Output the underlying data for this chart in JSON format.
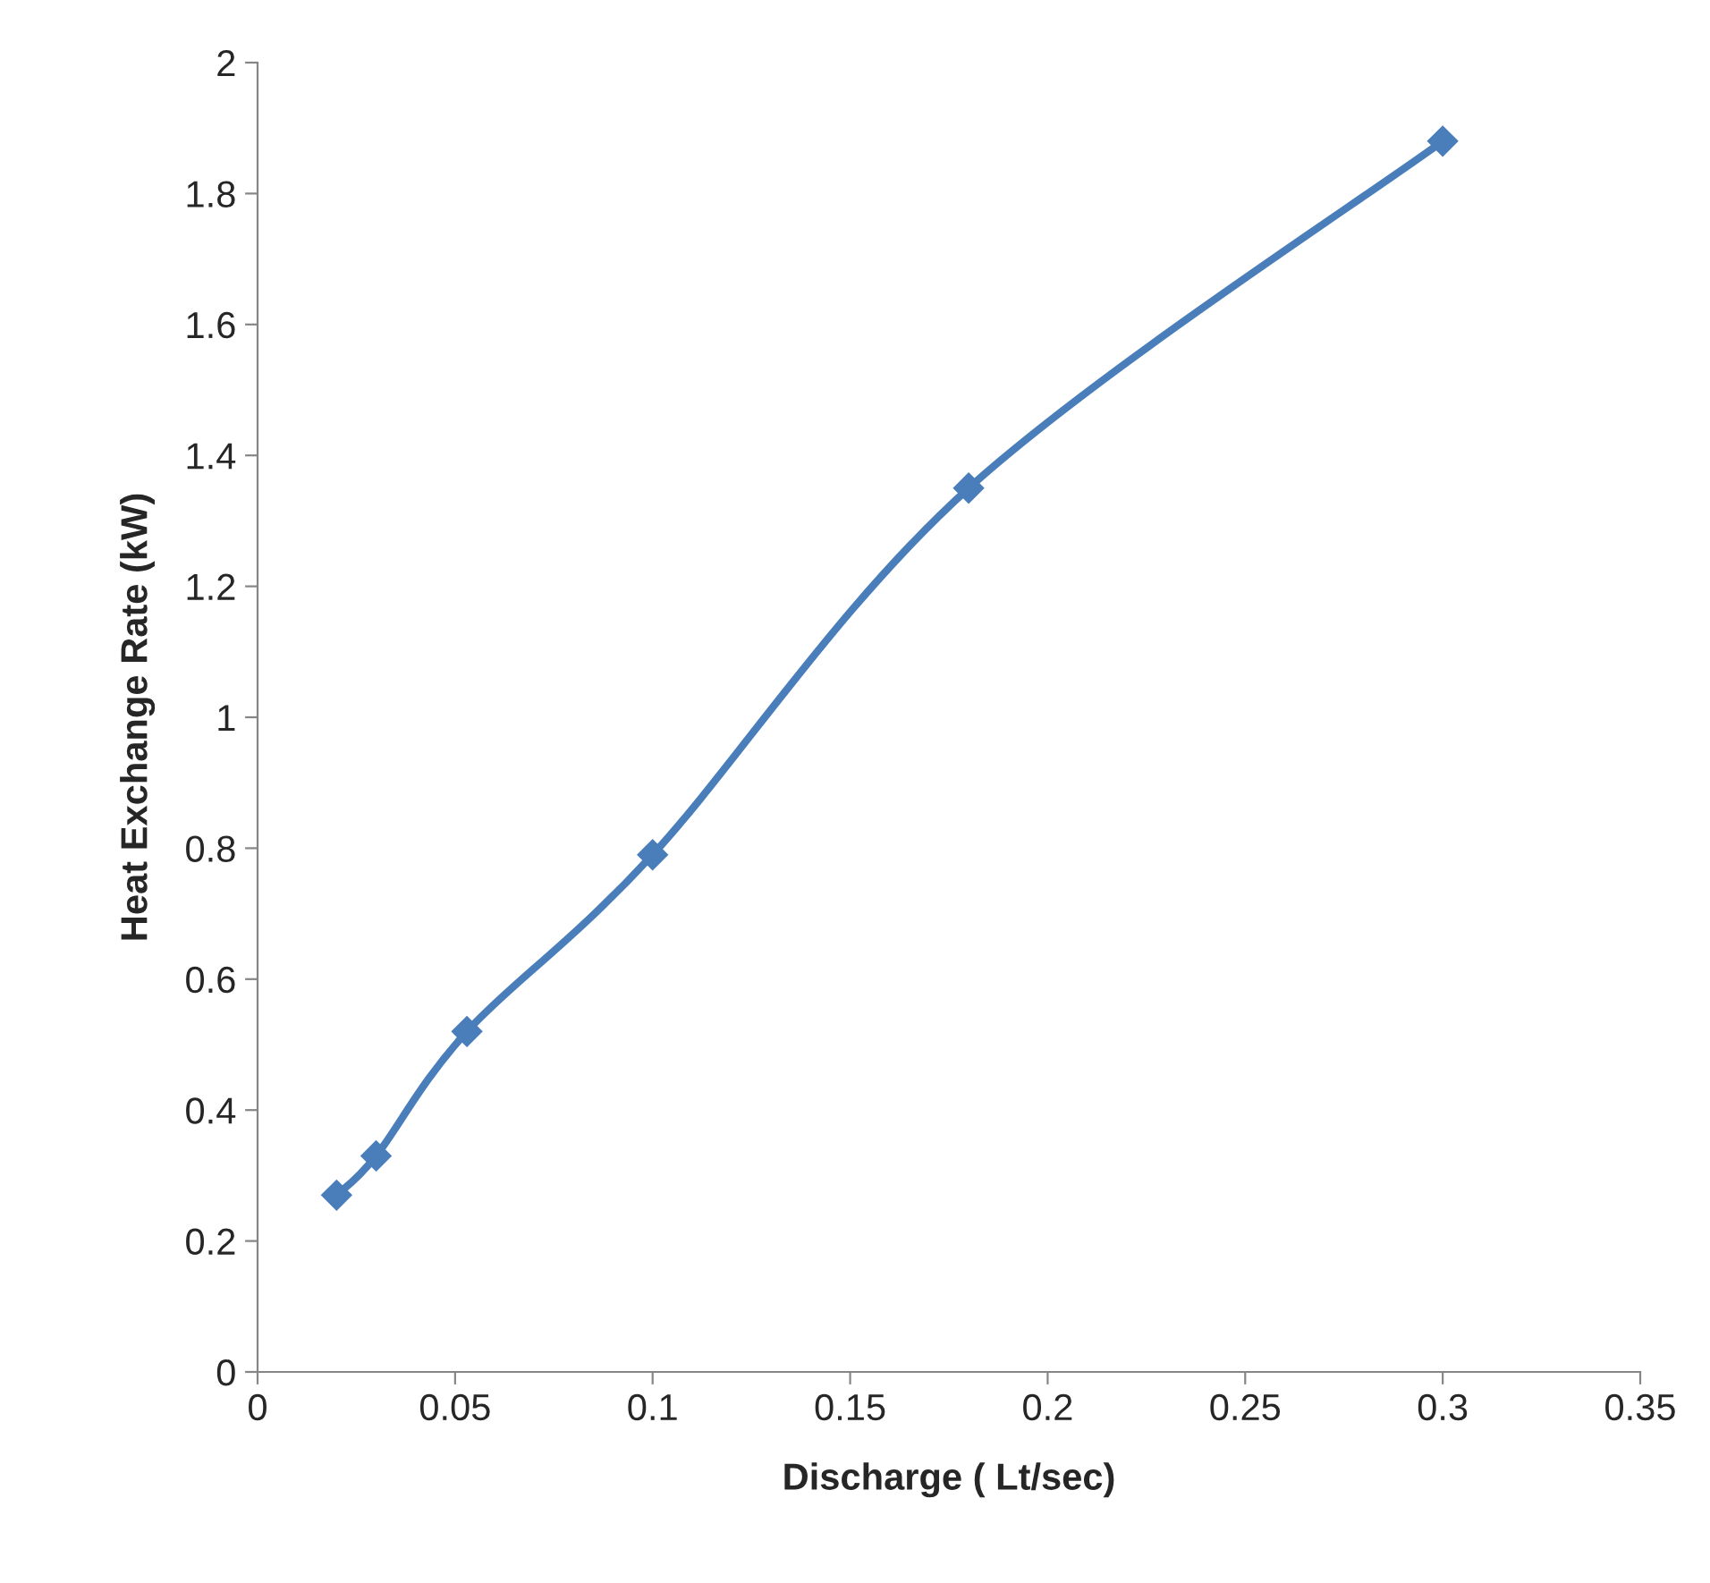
{
  "chart_data": {
    "type": "line",
    "xlabel": "Discharge ( Lt/sec)",
    "ylabel": "Heat Exchange Rate (kW)",
    "x": [
      0.02,
      0.03,
      0.053,
      0.1,
      0.18,
      0.3
    ],
    "series": [
      {
        "color": "#4a7ebb",
        "values": [
          0.27,
          0.33,
          0.52,
          0.79,
          1.35,
          1.88
        ]
      }
    ],
    "xlim": [
      0,
      0.35
    ],
    "xticks": [
      0,
      0.05,
      0.1,
      0.15,
      0.2,
      0.25,
      0.3,
      0.35
    ],
    "ylim": [
      0,
      2
    ],
    "yticks": [
      0,
      0.2,
      0.4,
      0.6,
      0.8,
      1,
      1.2,
      1.4,
      1.6,
      1.8,
      2
    ],
    "grid": false,
    "legend": false,
    "marker": "diamond",
    "line_style": "solid"
  }
}
